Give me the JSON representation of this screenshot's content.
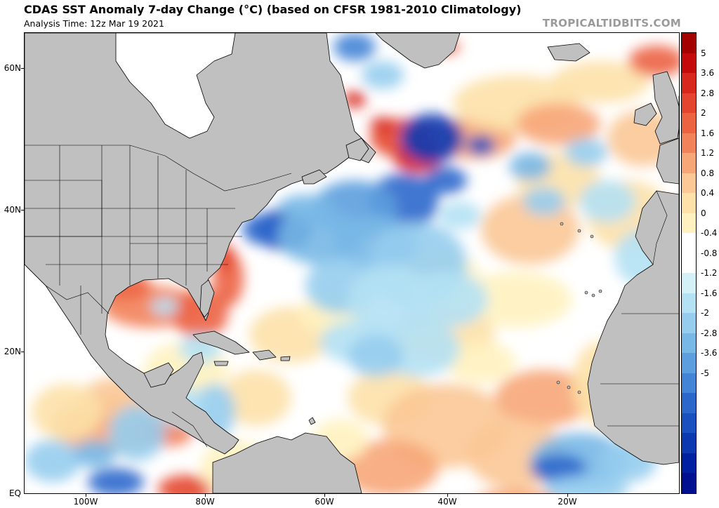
{
  "header": {
    "title": "CDAS SST Anomaly 7-day Change (°C) (based on CFSR 1981-2010 Climatology)",
    "analysis_time": "Analysis Time: 12z Mar 19 2021",
    "credit": "TROPICALTIDBITS.COM"
  },
  "map": {
    "lat_labels": [
      "60N",
      "40N",
      "20N",
      "EQ"
    ],
    "lon_labels": [
      "100W",
      "80W",
      "60W",
      "40W",
      "20W"
    ],
    "colors": {
      "land": "#c0c0c0",
      "ocean": "#ffffff",
      "coast": "#000000"
    }
  },
  "colorbar": {
    "labels": [
      "5",
      "3.6",
      "2.8",
      "2",
      "1.6",
      "1.2",
      "0.8",
      "0.4",
      "0",
      "-0.4",
      "-0.8",
      "-1.2",
      "-1.6",
      "-2",
      "-2.8",
      "-3.6",
      "-5"
    ],
    "colors": [
      "#a50000",
      "#c40a0a",
      "#d8281e",
      "#e4452e",
      "#ec6342",
      "#f2825a",
      "#f7a678",
      "#fbc896",
      "#fde1a8",
      "#fff2c0",
      "#ffffff",
      "#ffffff",
      "#d4f1f8",
      "#b4e1f4",
      "#96cdee",
      "#78b8e6",
      "#5c9ede",
      "#4484d6",
      "#2c68cc",
      "#1a50c0",
      "#0c38b2",
      "#0020a2",
      "#001090"
    ]
  }
}
